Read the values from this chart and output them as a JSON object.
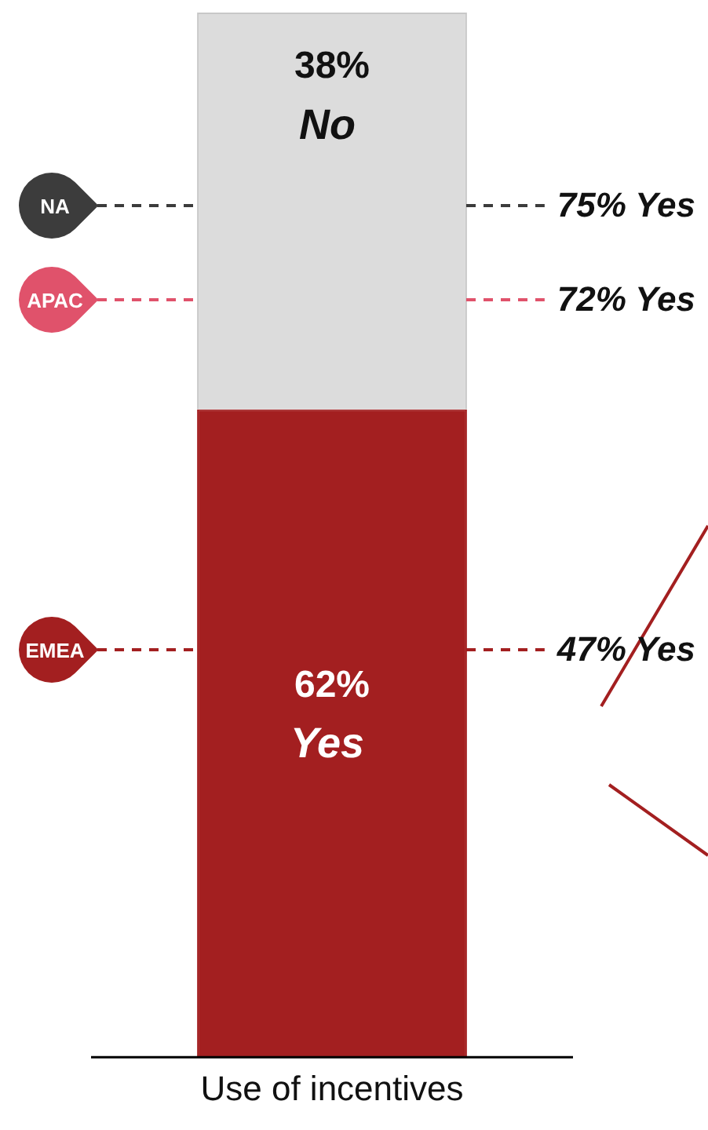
{
  "chart_data": {
    "type": "bar",
    "stacked": true,
    "categories": [
      "Use of incentives"
    ],
    "series": [
      {
        "name": "Yes",
        "color": "#a31f20",
        "values": [
          62
        ],
        "value_labels": [
          "62%"
        ]
      },
      {
        "name": "No",
        "color": "#dcdcdc",
        "values": [
          38
        ],
        "value_labels": [
          "38%"
        ]
      }
    ],
    "ylim": [
      0,
      100
    ],
    "tick_labels": "x",
    "grid": false,
    "legend": false,
    "annotations": [
      "NA",
      "75% Yes",
      "APAC",
      "72% Yes",
      "EMEA",
      "47% Yes"
    ]
  }
}
